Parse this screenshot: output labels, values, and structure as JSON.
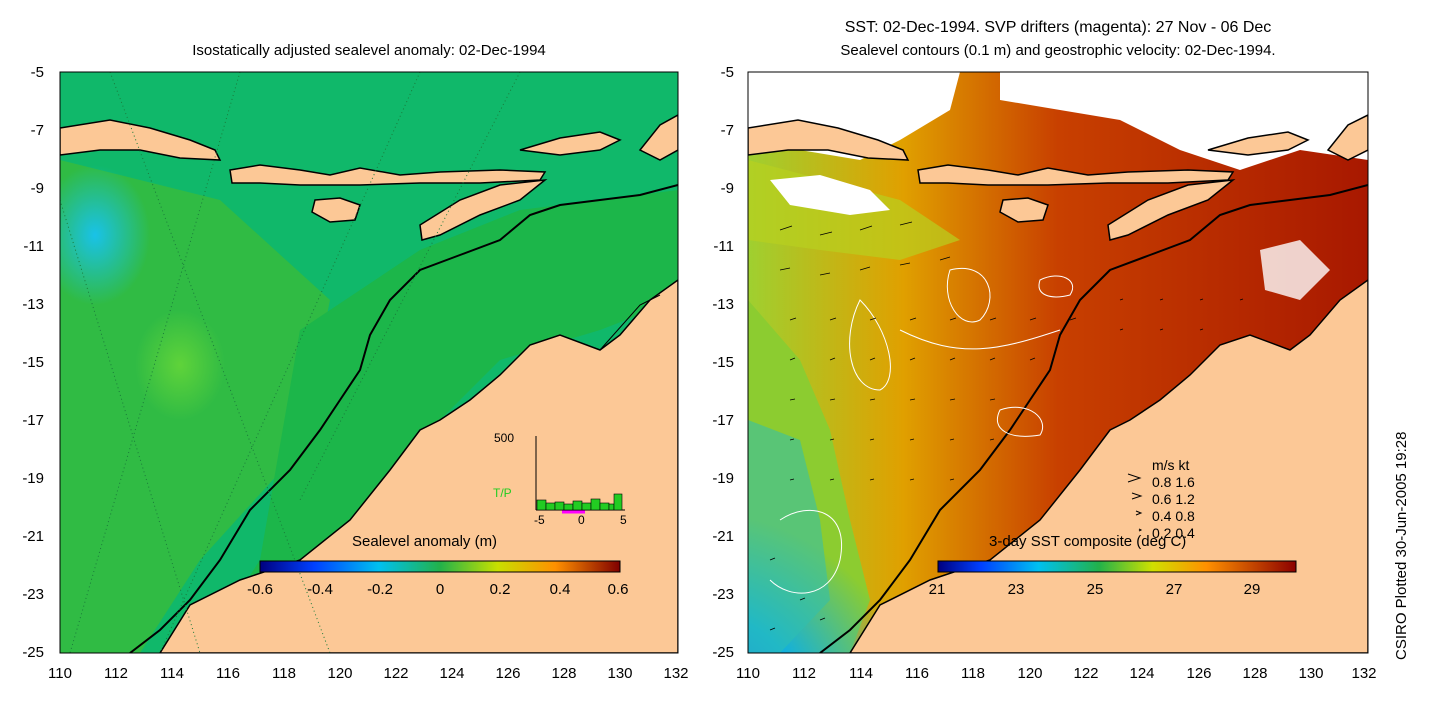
{
  "left_panel": {
    "title": "Isostatically adjusted sealevel anomaly: 02-Dec-1994",
    "colorbar": {
      "label": "Sealevel anomaly (m)",
      "ticks": [
        "-0.6",
        "-0.4",
        "-0.2",
        "0",
        "0.2",
        "0.4",
        "0.6"
      ]
    },
    "inset": {
      "ymax_label": "500",
      "series_label": "T/P",
      "xticks": [
        "-5",
        "0",
        "5"
      ]
    }
  },
  "right_panel": {
    "title_line1": "SST: 02-Dec-1994. SVP drifters (magenta): 27 Nov - 06 Dec",
    "title_line2": "Sealevel contours (0.1 m) and geostrophic velocity: 02-Dec-1994.",
    "colorbar": {
      "label": "3-day SST composite (deg C)",
      "ticks": [
        "21",
        "23",
        "25",
        "27",
        "29"
      ]
    },
    "velocity_legend": {
      "header": "m/s  kt",
      "rows": [
        "0.8  1.6",
        "0.6  1.2",
        "0.4  0.8",
        "0.2  0.4"
      ]
    }
  },
  "axes": {
    "yticks": [
      "-5",
      "-7",
      "-9",
      "-11",
      "-13",
      "-15",
      "-17",
      "-19",
      "-21",
      "-23",
      "-25"
    ],
    "xticks": [
      "110",
      "112",
      "114",
      "116",
      "118",
      "120",
      "122",
      "124",
      "126",
      "128",
      "130",
      "132"
    ],
    "lon_range": [
      110,
      132
    ],
    "lat_range": [
      -25,
      -5
    ]
  },
  "credit": "CSIRO Plotted 30-Jun-2005 19:28",
  "colors": {
    "land": "#fcc896",
    "ocean_green": "#22b24a",
    "no_data": "#ffffff"
  }
}
